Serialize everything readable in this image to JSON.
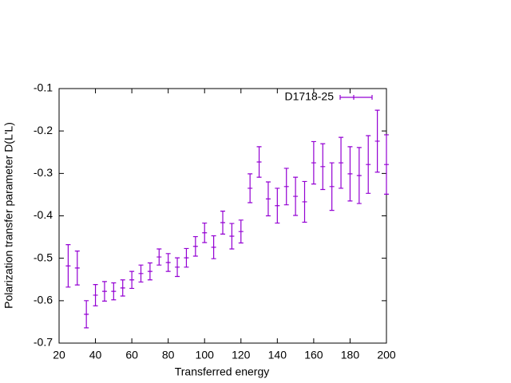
{
  "chart_data": {
    "type": "errorbar",
    "xlabel": "Transferred energy",
    "ylabel": "Polarization transfer parameter D(L'L)",
    "xlim": [
      20,
      200
    ],
    "ylim": [
      -0.7,
      -0.1
    ],
    "xticks": [
      20,
      40,
      60,
      80,
      100,
      120,
      140,
      160,
      180,
      200
    ],
    "yticks": [
      -0.7,
      -0.6,
      -0.5,
      -0.4,
      -0.3,
      -0.2,
      -0.1
    ],
    "legend": "top-right",
    "series": [
      {
        "name": "D1718-25",
        "color": "#9400d3",
        "x": [
          25,
          30,
          35,
          40,
          45,
          50,
          55,
          60,
          65,
          70,
          75,
          80,
          85,
          90,
          95,
          100,
          105,
          110,
          115,
          120,
          125,
          130,
          135,
          140,
          145,
          150,
          155,
          160,
          165,
          170,
          175,
          180,
          185,
          190,
          195,
          200
        ],
        "values": [
          -0.518,
          -0.523,
          -0.632,
          -0.587,
          -0.578,
          -0.578,
          -0.57,
          -0.551,
          -0.536,
          -0.531,
          -0.497,
          -0.51,
          -0.521,
          -0.499,
          -0.472,
          -0.44,
          -0.474,
          -0.416,
          -0.448,
          -0.437,
          -0.335,
          -0.273,
          -0.36,
          -0.376,
          -0.331,
          -0.354,
          -0.367,
          -0.275,
          -0.284,
          -0.331,
          -0.275,
          -0.301,
          -0.305,
          -0.279,
          -0.224,
          -0.279
        ],
        "errors": [
          0.05,
          0.04,
          0.032,
          0.025,
          0.023,
          0.02,
          0.019,
          0.02,
          0.02,
          0.02,
          0.019,
          0.021,
          0.022,
          0.022,
          0.023,
          0.023,
          0.027,
          0.027,
          0.03,
          0.027,
          0.034,
          0.036,
          0.04,
          0.041,
          0.043,
          0.045,
          0.048,
          0.05,
          0.054,
          0.056,
          0.06,
          0.064,
          0.066,
          0.068,
          0.073,
          0.07
        ]
      }
    ]
  }
}
